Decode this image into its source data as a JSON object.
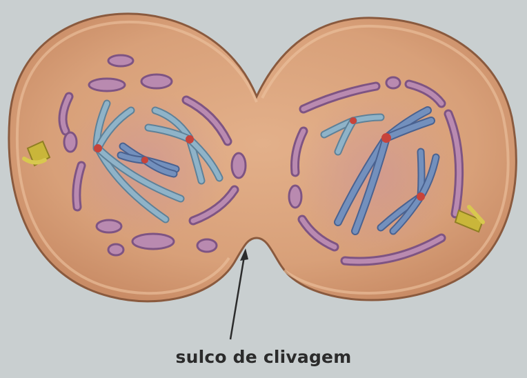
{
  "figure": {
    "label_text": "sulco de clivagem"
  },
  "colors": {
    "background": "#c9cfd0",
    "cytoplasm": "#d9a37a",
    "cell_border": "#8a5a3e",
    "vesicle_fill": "#b98ab0",
    "vesicle_edge": "#7e5483",
    "chromosome_left": "#86aac0",
    "chromosome_right": "#6f88b8",
    "centromere": "#c7433a",
    "centriole": "#c9b63a",
    "nucleus_region": "#c58a8e"
  },
  "icons": [
    "centriole-left",
    "centriole-right",
    "arrow-pointer"
  ]
}
